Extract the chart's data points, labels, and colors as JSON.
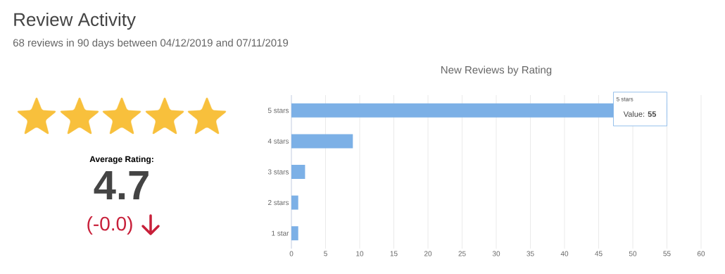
{
  "chart_data": {
    "type": "bar",
    "orientation": "horizontal",
    "title": "New Reviews by Rating",
    "categories": [
      "5 stars",
      "4 stars",
      "3 stars",
      "2 stars",
      "1 star"
    ],
    "values": [
      55,
      9,
      2,
      1,
      1
    ],
    "color": "#7cb0e6",
    "xlim": [
      0,
      60
    ],
    "xticks": [
      0,
      5,
      10,
      15,
      20,
      25,
      30,
      35,
      40,
      45,
      50,
      55,
      60
    ],
    "grid": "x",
    "annotations": [
      "Review Activity",
      "68 reviews in 90 days between 04/12/2019 and 07/11/2019",
      "Average Rating:",
      "4.7",
      "(-0.0)",
      "5 stars",
      {
        "text": "Value: **55**",
        "x": 55,
        "y": "5 stars"
      }
    ]
  }
}
